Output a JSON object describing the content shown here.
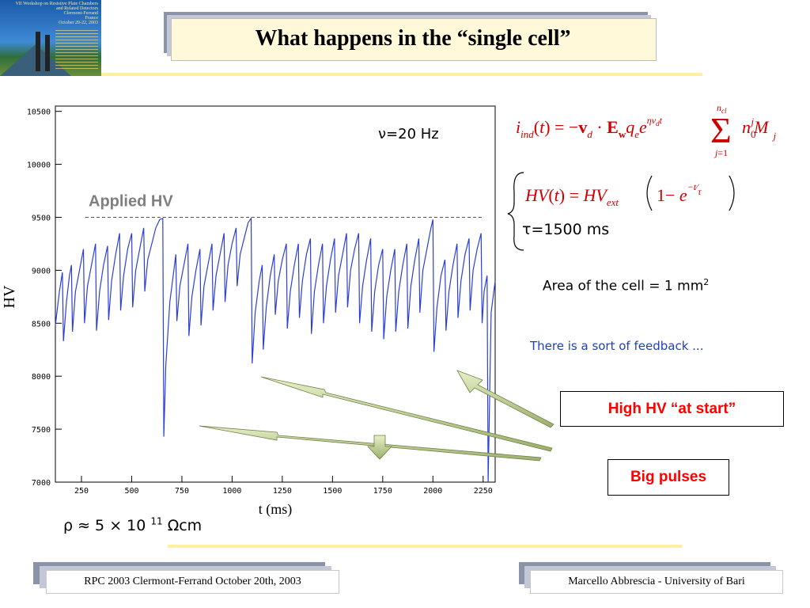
{
  "slide": {
    "title": "What happens in the “single cell”",
    "logo_text": [
      "VII Workshop on Resistive Plate Chambers",
      "and Related Detectors",
      "Clermont-Ferrand",
      "France",
      "October 20-22, 2003"
    ]
  },
  "chart_data": {
    "type": "line",
    "xlabel": "t (ms)",
    "ylabel": "HV",
    "xlim": [
      120,
      2310
    ],
    "ylim": [
      7000,
      10550
    ],
    "x_ticks": [
      250,
      500,
      750,
      1000,
      1250,
      1500,
      1750,
      2000,
      2250
    ],
    "y_ticks": [
      7000,
      7500,
      8000,
      8500,
      9000,
      9500,
      10000,
      10500
    ],
    "frequency_label": "ν=20 Hz",
    "applied_hv": {
      "label": "Applied HV",
      "value": 9500
    },
    "series": [
      {
        "color": "#2b3fd6",
        "points": [
          [
            120,
            8480
          ],
          [
            140,
            8800
          ],
          [
            155,
            8980
          ],
          [
            160,
            8330
          ],
          [
            175,
            8700
          ],
          [
            190,
            8950
          ],
          [
            200,
            9050
          ],
          [
            205,
            8420
          ],
          [
            220,
            8800
          ],
          [
            240,
            9000
          ],
          [
            260,
            9200
          ],
          [
            265,
            8500
          ],
          [
            280,
            8850
          ],
          [
            300,
            9050
          ],
          [
            320,
            9250
          ],
          [
            325,
            8430
          ],
          [
            340,
            8800
          ],
          [
            360,
            9050
          ],
          [
            380,
            9230
          ],
          [
            385,
            8530
          ],
          [
            400,
            8900
          ],
          [
            420,
            9150
          ],
          [
            440,
            9350
          ],
          [
            445,
            8620
          ],
          [
            460,
            8950
          ],
          [
            480,
            9200
          ],
          [
            500,
            9350
          ],
          [
            505,
            8650
          ],
          [
            520,
            9000
          ],
          [
            540,
            9200
          ],
          [
            560,
            9400
          ],
          [
            565,
            8800
          ],
          [
            580,
            9100
          ],
          [
            600,
            9250
          ],
          [
            620,
            9400
          ],
          [
            640,
            9480
          ],
          [
            655,
            9490
          ],
          [
            660,
            7430
          ],
          [
            670,
            8100
          ],
          [
            690,
            8700
          ],
          [
            710,
            9000
          ],
          [
            720,
            9150
          ],
          [
            725,
            8520
          ],
          [
            740,
            8850
          ],
          [
            760,
            9050
          ],
          [
            780,
            9250
          ],
          [
            785,
            8380
          ],
          [
            800,
            8750
          ],
          [
            820,
            9000
          ],
          [
            840,
            9200
          ],
          [
            845,
            8480
          ],
          [
            860,
            8850
          ],
          [
            880,
            9050
          ],
          [
            900,
            9250
          ],
          [
            905,
            8620
          ],
          [
            920,
            8950
          ],
          [
            940,
            9150
          ],
          [
            960,
            9350
          ],
          [
            965,
            8700
          ],
          [
            980,
            9050
          ],
          [
            1000,
            9250
          ],
          [
            1020,
            9400
          ],
          [
            1025,
            8850
          ],
          [
            1040,
            9150
          ],
          [
            1060,
            9300
          ],
          [
            1080,
            9450
          ],
          [
            1095,
            9490
          ],
          [
            1100,
            8120
          ],
          [
            1115,
            8600
          ],
          [
            1135,
            8900
          ],
          [
            1150,
            9050
          ],
          [
            1155,
            8250
          ],
          [
            1170,
            8650
          ],
          [
            1190,
            8950
          ],
          [
            1210,
            9150
          ],
          [
            1215,
            8580
          ],
          [
            1230,
            8900
          ],
          [
            1250,
            9100
          ],
          [
            1270,
            9250
          ],
          [
            1275,
            8450
          ],
          [
            1290,
            8800
          ],
          [
            1310,
            9050
          ],
          [
            1330,
            9250
          ],
          [
            1335,
            8550
          ],
          [
            1350,
            8900
          ],
          [
            1370,
            9150
          ],
          [
            1390,
            9300
          ],
          [
            1395,
            8400
          ],
          [
            1410,
            8800
          ],
          [
            1430,
            9050
          ],
          [
            1450,
            9250
          ],
          [
            1455,
            8500
          ],
          [
            1470,
            8850
          ],
          [
            1490,
            9100
          ],
          [
            1510,
            9300
          ],
          [
            1515,
            8600
          ],
          [
            1530,
            8950
          ],
          [
            1550,
            9150
          ],
          [
            1570,
            9350
          ],
          [
            1575,
            8650
          ],
          [
            1590,
            9000
          ],
          [
            1610,
            9200
          ],
          [
            1630,
            9350
          ],
          [
            1635,
            8500
          ],
          [
            1650,
            8850
          ],
          [
            1670,
            9100
          ],
          [
            1690,
            9300
          ],
          [
            1695,
            8420
          ],
          [
            1710,
            8800
          ],
          [
            1730,
            9050
          ],
          [
            1750,
            9200
          ],
          [
            1755,
            8350
          ],
          [
            1770,
            8750
          ],
          [
            1790,
            9000
          ],
          [
            1810,
            9200
          ],
          [
            1815,
            8420
          ],
          [
            1830,
            8800
          ],
          [
            1850,
            9050
          ],
          [
            1870,
            9250
          ],
          [
            1875,
            8450
          ],
          [
            1890,
            8850
          ],
          [
            1910,
            9100
          ],
          [
            1930,
            9300
          ],
          [
            1935,
            8600
          ],
          [
            1950,
            9000
          ],
          [
            1970,
            9200
          ],
          [
            1990,
            9400
          ],
          [
            2000,
            9480
          ],
          [
            2005,
            8230
          ],
          [
            2020,
            8650
          ],
          [
            2040,
            8950
          ],
          [
            2060,
            9100
          ],
          [
            2065,
            8430
          ],
          [
            2080,
            8800
          ],
          [
            2100,
            9050
          ],
          [
            2120,
            9250
          ],
          [
            2125,
            8550
          ],
          [
            2140,
            8900
          ],
          [
            2160,
            9150
          ],
          [
            2180,
            9300
          ],
          [
            2185,
            8620
          ],
          [
            2200,
            9000
          ],
          [
            2220,
            9200
          ],
          [
            2240,
            9350
          ],
          [
            2245,
            8500
          ],
          [
            2255,
            8800
          ],
          [
            2270,
            8950
          ],
          [
            2275,
            7000
          ],
          [
            2290,
            8600
          ],
          [
            2310,
            8900
          ]
        ]
      }
    ]
  },
  "notes": {
    "rho_label": "ρ ≈ 5 × 10 11 Ωcm",
    "tau_label": "τ=1500 ms",
    "area_label": "Area of the cell = 1 mm2",
    "feedback_label": "There is a sort of feedback ..."
  },
  "formulas": {
    "current": "i_ind(t) = −v_d · E_w q_e e^(ηv_d t) Σ_{j=1}^{n_cl} n_0^j M_j",
    "hv": "HV(t) = HV_ext (1 − e^(−t/τ))"
  },
  "callouts": {
    "high_hv": "High HV “at start”",
    "big_pulses": "Big pulses"
  },
  "footer": {
    "left": "RPC 2003 Clermont-Ferrand October 20th, 2003",
    "right": "Marcello Abbrescia - University of Bari"
  },
  "colors": {
    "title_bg": "#fff8d9",
    "series": "#2b3fd6",
    "callout_text": "#ff0000",
    "feedback_text": "#1f3fbf",
    "formula_text": "#cc0000"
  }
}
